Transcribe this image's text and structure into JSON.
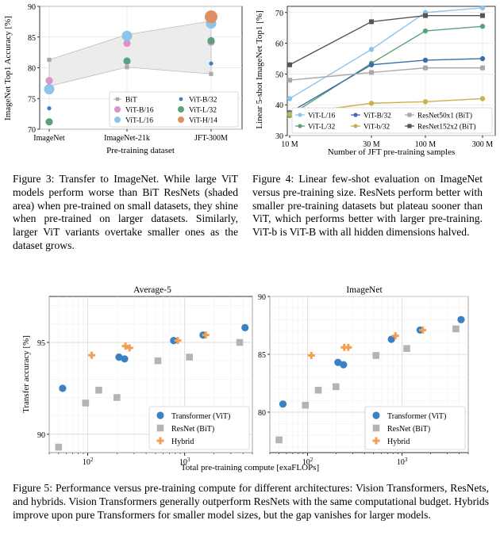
{
  "chart_data": [
    {
      "type": "scatter",
      "id": "fig3",
      "ylabel": "ImageNet Top1 Accuracy [%]",
      "xlabel": "Pre-training dataset",
      "categories": [
        "ImageNet",
        "ImageNet-21k",
        "JFT-300M"
      ],
      "ylim": [
        70,
        90
      ],
      "yticks": [
        70,
        75,
        80,
        85,
        90
      ],
      "bit_band": {
        "upper": [
          81.3,
          85.4,
          87.6
        ],
        "lower": [
          77.0,
          80.1,
          79.0
        ]
      },
      "bit_line": [
        81.3,
        85.4,
        87.6
      ],
      "series": [
        {
          "name": "BiT",
          "color": "#a9a9a9",
          "marker": "square",
          "values": [
            77.0,
            80.1,
            79.0
          ],
          "extra_values": [
            81.3,
            85.4,
            87.6
          ]
        },
        {
          "name": "ViT-B/32",
          "color": "#3a80c4",
          "marker": "dot-small",
          "values": [
            73.4,
            81.2,
            80.7
          ]
        },
        {
          "name": "ViT-B/16",
          "color": "#d895c8",
          "marker": "dot",
          "values": [
            77.9,
            84.0,
            84.2
          ]
        },
        {
          "name": "ViT-L/32",
          "color": "#5aa27c",
          "marker": "dot",
          "values": [
            71.2,
            81.1,
            84.4
          ]
        },
        {
          "name": "ViT-L/16",
          "color": "#8fc3ea",
          "marker": "dot-large",
          "values": [
            76.5,
            85.2,
            87.2
          ]
        },
        {
          "name": "ViT-H/14",
          "color": "#de8f63",
          "marker": "dot-xl",
          "values": [
            null,
            null,
            88.3
          ]
        }
      ],
      "legend": [
        "BiT",
        "ViT-B/32",
        "ViT-B/16",
        "ViT-L/32",
        "ViT-L/16",
        "ViT-H/14"
      ],
      "legend_position": "bottom-right",
      "grid": true
    },
    {
      "type": "line",
      "id": "fig4",
      "ylabel": "Linear 5-shot ImageNet Top1 [%]",
      "xlabel": "Number of JFT pre-training samples",
      "categories": [
        "10 M",
        "30 M",
        "100 M",
        "300 M"
      ],
      "ylim": [
        30,
        72
      ],
      "yticks": [
        30,
        40,
        50,
        60,
        70
      ],
      "series": [
        {
          "name": "ViT-L/16",
          "color": "#8fc3ea",
          "marker": "circle",
          "values": [
            42.0,
            58.0,
            70.0,
            71.5
          ]
        },
        {
          "name": "ViT-L/32",
          "color": "#5aa27c",
          "marker": "circle",
          "values": [
            36.5,
            53.5,
            64.0,
            65.5
          ]
        },
        {
          "name": "ViT-B/32",
          "color": "#3a6fa8",
          "marker": "circle",
          "values": [
            37.5,
            53.0,
            54.5,
            55.0
          ]
        },
        {
          "name": "ViT-b/32",
          "color": "#c8b24a",
          "marker": "circle",
          "values": [
            37.0,
            40.5,
            41.0,
            42.0
          ]
        },
        {
          "name": "ResNet50x1 (BiT)",
          "color": "#a9a9a9",
          "marker": "square",
          "values": [
            48.0,
            50.5,
            52.0,
            52.0
          ]
        },
        {
          "name": "ResNet152x2 (BiT)",
          "color": "#555555",
          "marker": "square",
          "values": [
            53.0,
            67.0,
            69.0,
            69.0
          ]
        }
      ],
      "legend": [
        "ViT-L/16",
        "ViT-L/32",
        "ViT-B/32",
        "ViT-b/32",
        "ResNet50x1 (BiT)",
        "ResNet152x2 (BiT)"
      ],
      "legend_position": "bottom",
      "grid": true
    },
    {
      "type": "scatter",
      "id": "fig5a",
      "title": "Average-5",
      "ylabel": "Transfer accuracy [%]",
      "xscale": "log",
      "xlim": [
        40,
        5000
      ],
      "ylim": [
        89,
        97.5
      ],
      "yticks": [
        90,
        95
      ],
      "xticks": [
        "10^2",
        "10^3"
      ],
      "series": [
        {
          "name": "Transformer (ViT)",
          "color": "#3a80c4",
          "marker": "circle",
          "x": [
            55,
            210,
            240,
            770,
            1550,
            4200
          ],
          "y": [
            92.5,
            94.2,
            94.1,
            95.1,
            95.4,
            95.8
          ]
        },
        {
          "name": "ResNet (BiT)",
          "color": "#b4b4b4",
          "marker": "square",
          "x": [
            50,
            95,
            130,
            200,
            530,
            1120,
            3700
          ],
          "y": [
            89.3,
            91.7,
            92.4,
            92.0,
            94.0,
            94.2,
            95.0
          ]
        },
        {
          "name": "Hybrid",
          "color": "#f0a050",
          "marker": "plus",
          "x": [
            110,
            245,
            270,
            850,
            1650
          ],
          "y": [
            94.3,
            94.8,
            94.7,
            95.1,
            95.4
          ]
        }
      ],
      "legend_position": "bottom-right",
      "grid": true
    },
    {
      "type": "scatter",
      "id": "fig5b",
      "title": "ImageNet",
      "xscale": "log",
      "xlim": [
        40,
        5000
      ],
      "ylim": [
        76.5,
        90
      ],
      "yticks": [
        80,
        85,
        90
      ],
      "xticks": [
        "10^2",
        "10^3"
      ],
      "series": [
        {
          "name": "Transformer (ViT)",
          "color": "#3a80c4",
          "marker": "circle",
          "x": [
            55,
            210,
            240,
            770,
            1550,
            4200
          ],
          "y": [
            80.7,
            84.3,
            84.1,
            86.3,
            87.1,
            88.0
          ]
        },
        {
          "name": "ResNet (BiT)",
          "color": "#b4b4b4",
          "marker": "square",
          "x": [
            50,
            95,
            130,
            200,
            530,
            1120,
            3700
          ],
          "y": [
            77.6,
            80.6,
            81.9,
            82.2,
            84.9,
            85.5,
            87.2
          ]
        },
        {
          "name": "Hybrid",
          "color": "#f0a050",
          "marker": "plus",
          "x": [
            110,
            245,
            270,
            850,
            1650
          ],
          "y": [
            84.9,
            85.6,
            85.6,
            86.6,
            87.1
          ]
        }
      ],
      "legend": [
        "Transformer (ViT)",
        "ResNet (BiT)",
        "Hybrid"
      ],
      "legend_position": "bottom-right",
      "grid": true
    }
  ],
  "fig5_shared_xlabel": "Total pre-training compute [exaFLOPs]",
  "captions": {
    "fig3": "Figure 3:  Transfer to ImageNet.  While large ViT models perform worse than BiT ResNets (shaded area) when pre-trained on small datasets, they shine when pre-trained on larger datasets. Similarly, larger ViT variants overtake smaller ones as the dataset grows.",
    "fig4": "Figure 4: Linear few-shot evaluation on ImageNet versus pre-training size.  ResNets perform better with smaller pre-training datasets but plateau sooner than ViT, which performs better with larger pre-training.  ViT-b is ViT-B with all hidden dimensions halved.",
    "fig5": "Figure 5: Performance versus pre-training compute for different architectures: Vision Transformers, ResNets, and hybrids.  Vision Transformers generally outperform ResNets with the same computational budget.  Hybrids improve upon pure Transformers for smaller model sizes, but the gap vanishes for larger models."
  }
}
